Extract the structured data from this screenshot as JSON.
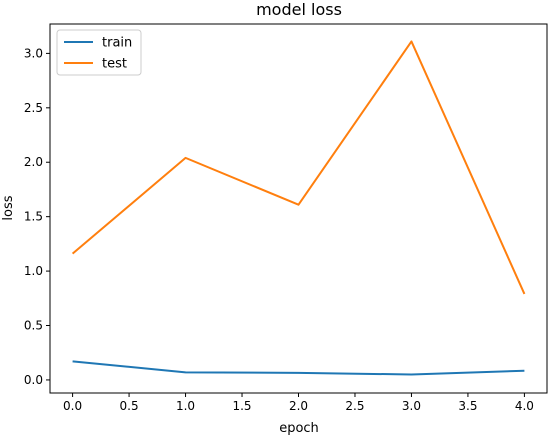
{
  "chart_data": {
    "type": "line",
    "title": "model loss",
    "xlabel": "epoch",
    "ylabel": "loss",
    "x": [
      0,
      1,
      2,
      3,
      4
    ],
    "xlim": [
      -0.2,
      4.2
    ],
    "ylim": [
      -0.12,
      3.27
    ],
    "xticks": [
      0.0,
      0.5,
      1.0,
      1.5,
      2.0,
      2.5,
      3.0,
      3.5,
      4.0
    ],
    "xtick_labels": [
      "0.0",
      "0.5",
      "1.0",
      "1.5",
      "2.0",
      "2.5",
      "3.0",
      "3.5",
      "4.0"
    ],
    "yticks": [
      0.0,
      0.5,
      1.0,
      1.5,
      2.0,
      2.5,
      3.0
    ],
    "ytick_labels": [
      "0.0",
      "0.5",
      "1.0",
      "1.5",
      "2.0",
      "2.5",
      "3.0"
    ],
    "grid": false,
    "legend_position": "top-left",
    "series": [
      {
        "name": "train",
        "color": "#1f77b4",
        "values": [
          0.17,
          0.07,
          0.065,
          0.05,
          0.085
        ]
      },
      {
        "name": "test",
        "color": "#ff7f0e",
        "values": [
          1.16,
          2.04,
          1.61,
          3.11,
          0.79
        ]
      }
    ]
  }
}
